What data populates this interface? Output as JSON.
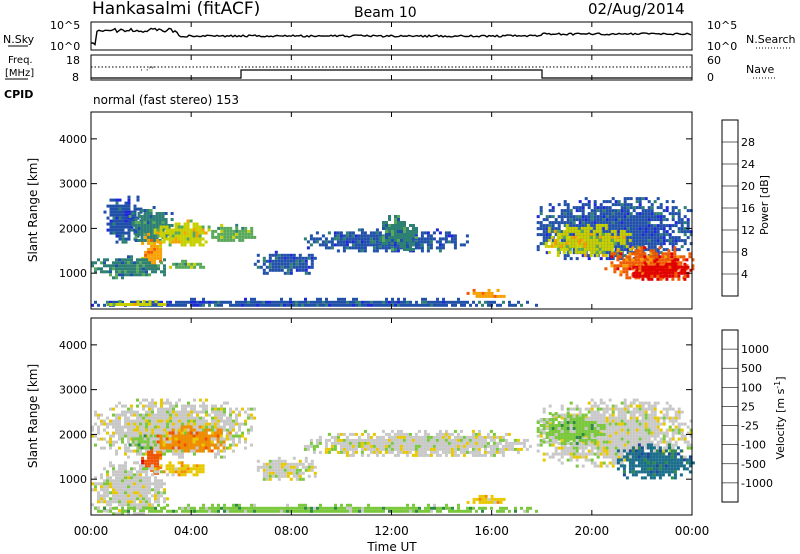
{
  "header": {
    "station": "Hankasalmi (fitACF)",
    "beam": "Beam 10",
    "date": "02/Aug/2014"
  },
  "noise_panel": {
    "left_label": "N.Sky",
    "right_label": "N.Search",
    "ticks": [
      "10^5",
      "10^0"
    ]
  },
  "freq_panel": {
    "left_label_1": "Freq.",
    "left_label_2": "[MHz]",
    "left_ticks": [
      "18",
      "8"
    ],
    "right_label": "Nave",
    "right_ticks": [
      "60",
      "0"
    ],
    "cpid_label": "CPID",
    "cpid_text": "normal (fast stereo) 153"
  },
  "chart_data": [
    {
      "type": "heatmap",
      "name": "power",
      "ylabel": "Slant Range [km]",
      "yticks": [
        "1000",
        "2000",
        "3000",
        "4000"
      ],
      "ylim": [
        200,
        4600
      ],
      "colorbar_label": "Power [dB]",
      "colorbar_ticks": [
        "4",
        "8",
        "12",
        "16",
        "20",
        "24",
        "28"
      ],
      "colorbar_colors": [
        "#1e28d8",
        "#2050a8",
        "#2e7f74",
        "#58a85a",
        "#c8d000",
        "#f7a000",
        "#f05a00",
        "#e00000"
      ],
      "regions": [
        {
          "x": [
            0.5,
            2.0
          ],
          "y": [
            1700,
            2800
          ],
          "level": 1
        },
        {
          "x": [
            1.5,
            3.2
          ],
          "y": [
            1700,
            2500
          ],
          "level": 2
        },
        {
          "x": [
            2.5,
            4.8
          ],
          "y": [
            1600,
            2200
          ],
          "level": 4
        },
        {
          "x": [
            4.8,
            6.5
          ],
          "y": [
            1700,
            2100
          ],
          "level": 3
        },
        {
          "x": [
            2.0,
            2.8
          ],
          "y": [
            1100,
            1900
          ],
          "level": 5
        },
        {
          "x": [
            0.0,
            3.0
          ],
          "y": [
            900,
            1400
          ],
          "level": 2
        },
        {
          "x": [
            3.0,
            4.5
          ],
          "y": [
            1100,
            1300
          ],
          "level": 3
        },
        {
          "x": [
            6.5,
            9.0
          ],
          "y": [
            1000,
            1500
          ],
          "level": 1
        },
        {
          "x": [
            8.5,
            15.0
          ],
          "y": [
            1500,
            2000
          ],
          "level": 1
        },
        {
          "x": [
            11.5,
            13.0
          ],
          "y": [
            1500,
            2300
          ],
          "level": 2
        },
        {
          "x": [
            0.0,
            18.0
          ],
          "y": [
            250,
            450
          ],
          "level": 1
        },
        {
          "x": [
            0.5,
            3.0
          ],
          "y": [
            280,
            400
          ],
          "level": 4
        },
        {
          "x": [
            15.0,
            16.5
          ],
          "y": [
            450,
            650
          ],
          "level": 5
        },
        {
          "x": [
            17.8,
            24.0
          ],
          "y": [
            1300,
            2700
          ],
          "level": 1
        },
        {
          "x": [
            18.0,
            21.5
          ],
          "y": [
            1400,
            2100
          ],
          "level": 4
        },
        {
          "x": [
            20.5,
            24.0
          ],
          "y": [
            900,
            1600
          ],
          "level": 6
        },
        {
          "x": [
            21.5,
            24.0
          ],
          "y": [
            850,
            1300
          ],
          "level": 7
        }
      ]
    },
    {
      "type": "heatmap",
      "name": "velocity",
      "ylabel": "Slant Range [km]",
      "yticks": [
        "1000",
        "2000",
        "3000",
        "4000"
      ],
      "ylim": [
        200,
        4600
      ],
      "colorbar_label": "Velocity [m s^-1]",
      "colorbar_ticks": [
        "1000",
        "500",
        "100",
        "25",
        "-25",
        "-100",
        "-500",
        "-1000"
      ],
      "colorbar_colors": [
        "#1e46a0",
        "#1a6e8c",
        "#2e8a46",
        "#7ac83c",
        "#c8c8c8",
        "#e8c800",
        "#f08c00",
        "#f05000",
        "#e00000"
      ],
      "regions": [
        {
          "x": [
            0.0,
            6.5
          ],
          "y": [
            1500,
            2800
          ],
          "level": 4
        },
        {
          "x": [
            2.5,
            5.5
          ],
          "y": [
            1600,
            2200
          ],
          "level": 6
        },
        {
          "x": [
            2.0,
            2.8
          ],
          "y": [
            1100,
            1700
          ],
          "level": 7
        },
        {
          "x": [
            2.5,
            4.5
          ],
          "y": [
            1100,
            1400
          ],
          "level": 5
        },
        {
          "x": [
            0.0,
            3.0
          ],
          "y": [
            250,
            1400
          ],
          "level": 4
        },
        {
          "x": [
            1.5,
            2.5
          ],
          "y": [
            1700,
            2000
          ],
          "level": 3
        },
        {
          "x": [
            6.5,
            9.0
          ],
          "y": [
            1000,
            1500
          ],
          "level": 4
        },
        {
          "x": [
            8.5,
            17.5
          ],
          "y": [
            1500,
            2100
          ],
          "level": 4
        },
        {
          "x": [
            0.0,
            18.0
          ],
          "y": [
            250,
            450
          ],
          "level": 3
        },
        {
          "x": [
            15.0,
            16.5
          ],
          "y": [
            450,
            650
          ],
          "level": 5
        },
        {
          "x": [
            17.8,
            24.0
          ],
          "y": [
            1300,
            2800
          ],
          "level": 4
        },
        {
          "x": [
            17.8,
            20.5
          ],
          "y": [
            1800,
            2500
          ],
          "level": 3
        },
        {
          "x": [
            21.0,
            24.0
          ],
          "y": [
            1000,
            1800
          ],
          "level": 1
        }
      ]
    }
  ],
  "time_axis": {
    "ticks": [
      "00:00",
      "04:00",
      "08:00",
      "12:00",
      "16:00",
      "20:00",
      "00:00"
    ],
    "label": "Time UT"
  }
}
